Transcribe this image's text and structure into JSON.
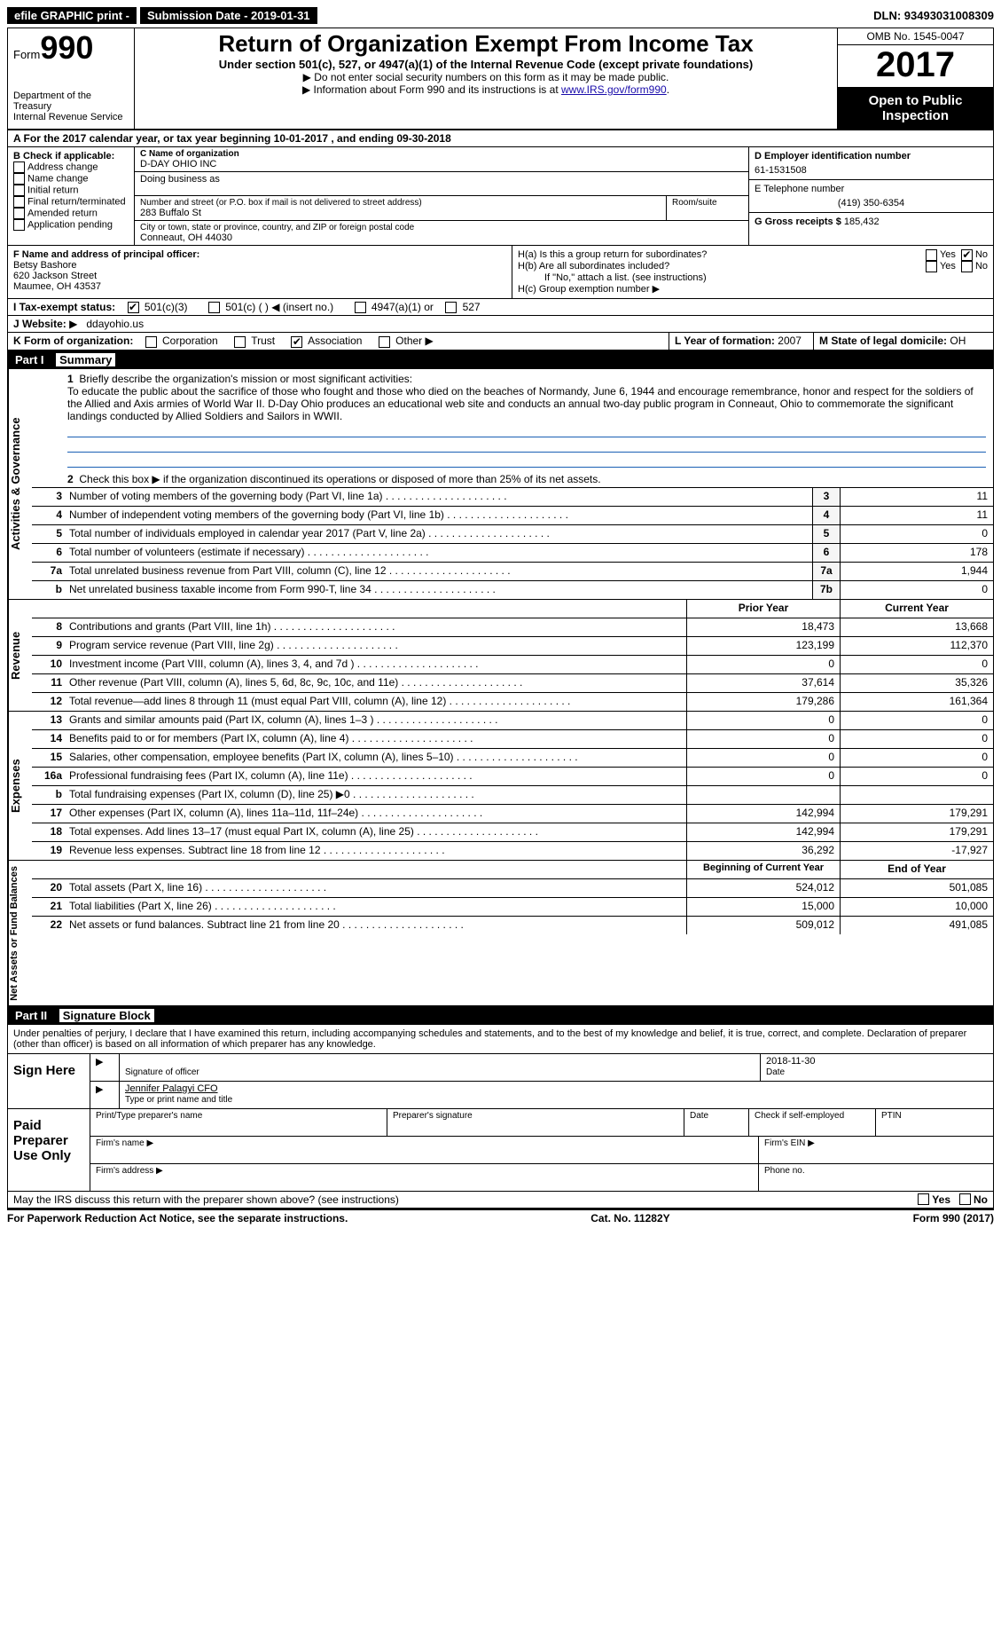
{
  "topbar": {
    "efile": "efile GRAPHIC print -",
    "submission_label": "Submission Date - 2019-01-31",
    "dln": "DLN: 93493031008309"
  },
  "header": {
    "form_label": "Form",
    "form_number": "990",
    "dept1": "Department of the Treasury",
    "dept2": "Internal Revenue Service",
    "title": "Return of Organization Exempt From Income Tax",
    "subtitle": "Under section 501(c), 527, or 4947(a)(1) of the Internal Revenue Code (except private foundations)",
    "note1": "Do not enter social security numbers on this form as it may be made public.",
    "note2_a": "Information about Form 990 and its instructions is at ",
    "note2_link": "www.IRS.gov/form990",
    "omb": "OMB No. 1545-0047",
    "year": "2017",
    "open": "Open to Public Inspection"
  },
  "A": {
    "text": "A  For the 2017 calendar year, or tax year beginning 10-01-2017   , and ending 09-30-2018"
  },
  "B": {
    "label": "B Check if applicable:",
    "items": [
      "Address change",
      "Name change",
      "Initial return",
      "Final return/terminated",
      "Amended return",
      "Application pending"
    ]
  },
  "C": {
    "name_label": "C Name of organization",
    "name": "D-DAY OHIO INC",
    "dba_label": "Doing business as",
    "street_label": "Number and street (or P.O. box if mail is not delivered to street address)",
    "room_label": "Room/suite",
    "street": "283 Buffalo St",
    "city_label": "City or town, state or province, country, and ZIP or foreign postal code",
    "city": "Conneaut, OH  44030"
  },
  "D": {
    "label": "D Employer identification number",
    "value": "61-1531508"
  },
  "E": {
    "label": "E Telephone number",
    "value": "(419) 350-6354"
  },
  "G": {
    "label": "G Gross receipts $",
    "value": "185,432"
  },
  "F": {
    "label": "F  Name and address of principal officer:",
    "name": "Betsy Bashore",
    "addr1": "620 Jackson Street",
    "addr2": "Maumee, OH  43537"
  },
  "H": {
    "a": "H(a)  Is this a group return for subordinates?",
    "b": "H(b)  Are all subordinates included?",
    "bnote": "If \"No,\" attach a list. (see instructions)",
    "c": "H(c)  Group exemption number",
    "yes": "Yes",
    "no": "No"
  },
  "I": {
    "label": "I  Tax-exempt status:",
    "o1": "501(c)(3)",
    "o2": "501(c) ( )",
    "o2b": "(insert no.)",
    "o3": "4947(a)(1) or",
    "o4": "527"
  },
  "J": {
    "label": "J  Website:",
    "value": "ddayohio.us"
  },
  "K": {
    "label": "K Form of organization:",
    "o1": "Corporation",
    "o2": "Trust",
    "o3": "Association",
    "o4": "Other"
  },
  "L": {
    "label": "L Year of formation:",
    "value": "2007"
  },
  "M": {
    "label": "M State of legal domicile:",
    "value": "OH"
  },
  "part1": {
    "hdr": "Part I",
    "title": "Summary",
    "vlab1": "Activities & Governance",
    "vlab2": "Revenue",
    "vlab3": "Expenses",
    "vlab4": "Net Assets or Fund Balances",
    "l1": "Briefly describe the organization's mission or most significant activities:",
    "mission": "To educate the public about the sacrifice of those who fought and those who died on the beaches of Normandy, June 6, 1944 and encourage remembrance, honor and respect for the soldiers of the Allied and Axis armies of World War II. D-Day Ohio produces an educational web site and conducts an annual two-day public program in Conneaut, Ohio to commemorate the significant landings conducted by Allied Soldiers and Sailors in WWII.",
    "l2": "Check this box ▶  if the organization discontinued its operations or disposed of more than 25% of its net assets.",
    "lines_single": [
      {
        "n": "3",
        "t": "Number of voting members of the governing body (Part VI, line 1a)",
        "c": "3",
        "v": "11"
      },
      {
        "n": "4",
        "t": "Number of independent voting members of the governing body (Part VI, line 1b)",
        "c": "4",
        "v": "11"
      },
      {
        "n": "5",
        "t": "Total number of individuals employed in calendar year 2017 (Part V, line 2a)",
        "c": "5",
        "v": "0"
      },
      {
        "n": "6",
        "t": "Total number of volunteers (estimate if necessary)",
        "c": "6",
        "v": "178"
      },
      {
        "n": "7a",
        "t": "Total unrelated business revenue from Part VIII, column (C), line 12",
        "c": "7a",
        "v": "1,944"
      },
      {
        "n": "b",
        "t": "Net unrelated business taxable income from Form 990-T, line 34",
        "c": "7b",
        "v": "0"
      }
    ],
    "col_prior": "Prior Year",
    "col_current": "Current Year",
    "revenue": [
      {
        "n": "8",
        "t": "Contributions and grants (Part VIII, line 1h)",
        "p": "18,473",
        "c": "13,668"
      },
      {
        "n": "9",
        "t": "Program service revenue (Part VIII, line 2g)",
        "p": "123,199",
        "c": "112,370"
      },
      {
        "n": "10",
        "t": "Investment income (Part VIII, column (A), lines 3, 4, and 7d )",
        "p": "0",
        "c": "0"
      },
      {
        "n": "11",
        "t": "Other revenue (Part VIII, column (A), lines 5, 6d, 8c, 9c, 10c, and 11e)",
        "p": "37,614",
        "c": "35,326"
      },
      {
        "n": "12",
        "t": "Total revenue—add lines 8 through 11 (must equal Part VIII, column (A), line 12)",
        "p": "179,286",
        "c": "161,364"
      }
    ],
    "expenses": [
      {
        "n": "13",
        "t": "Grants and similar amounts paid (Part IX, column (A), lines 1–3 )",
        "p": "0",
        "c": "0"
      },
      {
        "n": "14",
        "t": "Benefits paid to or for members (Part IX, column (A), line 4)",
        "p": "0",
        "c": "0"
      },
      {
        "n": "15",
        "t": "Salaries, other compensation, employee benefits (Part IX, column (A), lines 5–10)",
        "p": "0",
        "c": "0"
      },
      {
        "n": "16a",
        "t": "Professional fundraising fees (Part IX, column (A), line 11e)",
        "p": "0",
        "c": "0"
      },
      {
        "n": "b",
        "t": "Total fundraising expenses (Part IX, column (D), line 25) ▶0",
        "p": "",
        "c": ""
      },
      {
        "n": "17",
        "t": "Other expenses (Part IX, column (A), lines 11a–11d, 11f–24e)",
        "p": "142,994",
        "c": "179,291"
      },
      {
        "n": "18",
        "t": "Total expenses. Add lines 13–17 (must equal Part IX, column (A), line 25)",
        "p": "142,994",
        "c": "179,291"
      },
      {
        "n": "19",
        "t": "Revenue less expenses. Subtract line 18 from line 12",
        "p": "36,292",
        "c": "-17,927"
      }
    ],
    "col_begin": "Beginning of Current Year",
    "col_end": "End of Year",
    "netassets": [
      {
        "n": "20",
        "t": "Total assets (Part X, line 16)",
        "p": "524,012",
        "c": "501,085"
      },
      {
        "n": "21",
        "t": "Total liabilities (Part X, line 26)",
        "p": "15,000",
        "c": "10,000"
      },
      {
        "n": "22",
        "t": "Net assets or fund balances. Subtract line 21 from line 20",
        "p": "509,012",
        "c": "491,085"
      }
    ]
  },
  "part2": {
    "hdr": "Part II",
    "title": "Signature Block",
    "perjury": "Under penalties of perjury, I declare that I have examined this return, including accompanying schedules and statements, and to the best of my knowledge and belief, it is true, correct, and complete. Declaration of preparer (other than officer) is based on all information of which preparer has any knowledge.",
    "sign_here": "Sign Here",
    "sig_officer": "Signature of officer",
    "date": "Date",
    "date_val": "2018-11-30",
    "name_title": "Jennifer Palagyi CFO",
    "type_name": "Type or print name and title",
    "paid": "Paid Preparer Use Only",
    "p_name": "Print/Type preparer's name",
    "p_sig": "Preparer's signature",
    "p_date": "Date",
    "p_check": "Check          if self-employed",
    "p_ptin": "PTIN",
    "p_firm": "Firm's name  ▶",
    "p_ein": "Firm's EIN ▶",
    "p_addr": "Firm's address ▶",
    "p_phone": "Phone no.",
    "discuss": "May the IRS discuss this return with the preparer shown above? (see instructions)",
    "yes": "Yes",
    "no": "No"
  },
  "footer": {
    "left": "For Paperwork Reduction Act Notice, see the separate instructions.",
    "mid": "Cat. No. 11282Y",
    "right": "Form 990 (2017)"
  }
}
